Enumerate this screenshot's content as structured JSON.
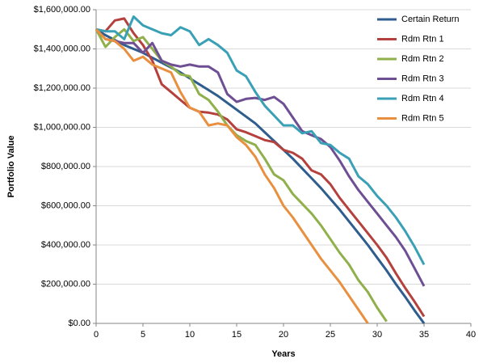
{
  "chart_data": {
    "type": "line",
    "x": [
      0,
      1,
      2,
      3,
      4,
      5,
      6,
      7,
      8,
      9,
      10,
      11,
      12,
      13,
      14,
      15,
      16,
      17,
      18,
      19,
      20,
      21,
      22,
      23,
      24,
      25,
      26,
      27,
      28,
      29,
      30,
      31,
      32,
      33,
      34,
      35
    ],
    "xlabel": "Years",
    "ylabel": "Portfolio Value",
    "xlim": [
      0,
      40
    ],
    "xticks": [
      0,
      5,
      10,
      15,
      20,
      25,
      30,
      35,
      40
    ],
    "ylim": [
      0,
      1600000
    ],
    "yticks": [
      {
        "value": 0,
        "label": "$0.00"
      },
      {
        "value": 200000,
        "label": "$200,000.00"
      },
      {
        "value": 400000,
        "label": "$400,000.00"
      },
      {
        "value": 600000,
        "label": "$600,000.00"
      },
      {
        "value": 800000,
        "label": "$800,000.00"
      },
      {
        "value": 1000000,
        "label": "$1,000,000.00"
      },
      {
        "value": 1200000,
        "label": "$1,200,000.00"
      },
      {
        "value": 1400000,
        "label": "$1,400,000.00"
      },
      {
        "value": 1600000,
        "label": "$1,600,000.00"
      }
    ],
    "grid": true,
    "legend": "right",
    "series": [
      {
        "name": "Certain Return",
        "color": "#2f5d8e",
        "values": [
          1500000,
          1470000,
          1445000,
          1420000,
          1400000,
          1380000,
          1355000,
          1330000,
          1305000,
          1280000,
          1250000,
          1220000,
          1190000,
          1160000,
          1125000,
          1090000,
          1055000,
          1020000,
          975000,
          930000,
          885000,
          840000,
          790000,
          740000,
          690000,
          635000,
          580000,
          520000,
          460000,
          400000,
          335000,
          270000,
          200000,
          135000,
          65000,
          0
        ]
      },
      {
        "name": "Rdm Rtn 1",
        "color": "#b5413e",
        "values": [
          1500000,
          1490000,
          1545000,
          1555000,
          1480000,
          1420000,
          1340000,
          1220000,
          1180000,
          1140000,
          1100000,
          1080000,
          1075000,
          1065000,
          1040000,
          990000,
          975000,
          955000,
          935000,
          925000,
          885000,
          870000,
          840000,
          780000,
          760000,
          710000,
          640000,
          580000,
          520000,
          460000,
          400000,
          335000,
          255000,
          180000,
          110000,
          35000
        ]
      },
      {
        "name": "Rdm Rtn 2",
        "color": "#8fb04a",
        "values": [
          1500000,
          1410000,
          1460000,
          1500000,
          1440000,
          1460000,
          1400000,
          1340000,
          1310000,
          1270000,
          1260000,
          1170000,
          1140000,
          1080000,
          1010000,
          960000,
          930000,
          910000,
          840000,
          760000,
          730000,
          660000,
          610000,
          560000,
          500000,
          430000,
          360000,
          300000,
          220000,
          160000,
          80000,
          10000,
          null,
          null,
          null,
          null
        ]
      },
      {
        "name": "Rdm Rtn 3",
        "color": "#6e4f93",
        "values": [
          1500000,
          1450000,
          1440000,
          1430000,
          1430000,
          1380000,
          1430000,
          1340000,
          1320000,
          1310000,
          1320000,
          1310000,
          1310000,
          1280000,
          1170000,
          1130000,
          1145000,
          1150000,
          1140000,
          1155000,
          1120000,
          1050000,
          980000,
          960000,
          940000,
          900000,
          830000,
          750000,
          680000,
          620000,
          560000,
          500000,
          440000,
          370000,
          280000,
          190000
        ]
      },
      {
        "name": "Rdm Rtn 4",
        "color": "#3aa0b6",
        "values": [
          1500000,
          1490000,
          1490000,
          1450000,
          1565000,
          1520000,
          1500000,
          1480000,
          1470000,
          1510000,
          1490000,
          1420000,
          1450000,
          1420000,
          1380000,
          1290000,
          1260000,
          1180000,
          1110000,
          1060000,
          1010000,
          1010000,
          970000,
          980000,
          920000,
          910000,
          870000,
          840000,
          750000,
          710000,
          650000,
          600000,
          540000,
          470000,
          390000,
          300000
        ]
      },
      {
        "name": "Rdm Rtn 5",
        "color": "#e8903f",
        "values": [
          1500000,
          1450000,
          1440000,
          1400000,
          1340000,
          1360000,
          1320000,
          1300000,
          1280000,
          1180000,
          1100000,
          1080000,
          1010000,
          1020000,
          1010000,
          950000,
          910000,
          850000,
          760000,
          690000,
          600000,
          540000,
          470000,
          400000,
          330000,
          270000,
          210000,
          140000,
          70000,
          0,
          null,
          null,
          null,
          null,
          null,
          null
        ]
      }
    ]
  }
}
